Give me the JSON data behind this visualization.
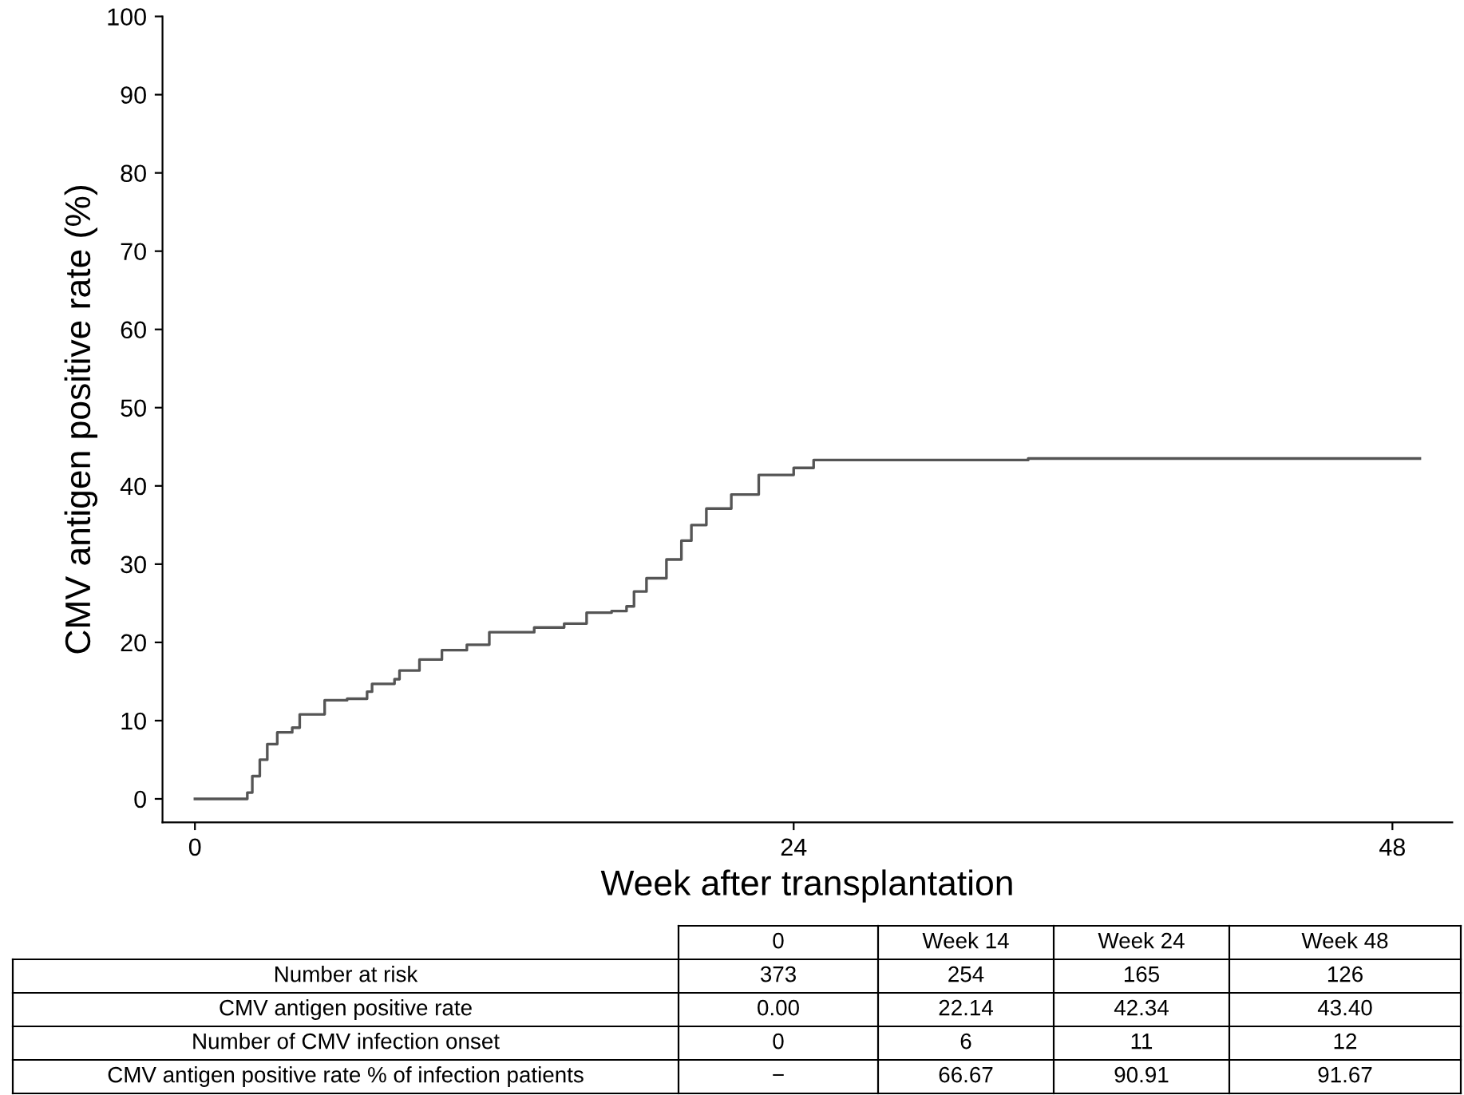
{
  "chart_data": {
    "type": "step",
    "xlabel": "Week after transplantation",
    "ylabel": "CMV antigen positive rate (%)",
    "series": [
      {
        "color": "#555555",
        "x": [
          0,
          1.8,
          2.1,
          2.3,
          2.6,
          2.9,
          3.3,
          3.9,
          4.2,
          5.2,
          6.1,
          6.9,
          7.1,
          8.0,
          8.2,
          9.0,
          9.9,
          10.9,
          11.8,
          13.5,
          13.6,
          14.8,
          15.7,
          16.7,
          17.3,
          17.6,
          18.1,
          18.9,
          19.5,
          19.9,
          20.5,
          21.5,
          22.6,
          23.5,
          24.0,
          24.8,
          33.4,
          49.1
        ],
        "values": [
          0,
          0,
          0.8,
          2.9,
          5.0,
          7.0,
          8.5,
          9.1,
          10.8,
          12.6,
          12.8,
          13.7,
          14.7,
          15.3,
          16.4,
          17.8,
          19.0,
          19.7,
          21.3,
          21.3,
          21.9,
          22.4,
          23.8,
          24.0,
          24.6,
          26.5,
          28.2,
          30.6,
          33.0,
          35.0,
          37.1,
          38.9,
          41.4,
          41.4,
          42.3,
          43.3,
          43.5,
          43.5
        ]
      }
    ],
    "xlim": [
      -1.3,
      50.4
    ],
    "xticks": [
      0,
      24,
      48
    ],
    "ylim": [
      -3,
      100
    ],
    "yticks": [
      0,
      10,
      20,
      30,
      40,
      50,
      60,
      70,
      80,
      90,
      100
    ],
    "grid": false,
    "legend": false,
    "marker": "none",
    "line_style": "solid",
    "annotations": [
      "0",
      "Week 14",
      "Week 24",
      "Week 48",
      "Number at risk",
      "373",
      "254",
      "165",
      "126",
      "CMV antigen positive rate",
      "0.00",
      "22.14",
      "42.34",
      "43.40",
      "Number of CMV infection onset",
      "0",
      "6",
      "11",
      "12",
      "CMV antigen positive rate % of infection patients",
      "−",
      "66.67",
      "90.91",
      "91.67"
    ]
  }
}
